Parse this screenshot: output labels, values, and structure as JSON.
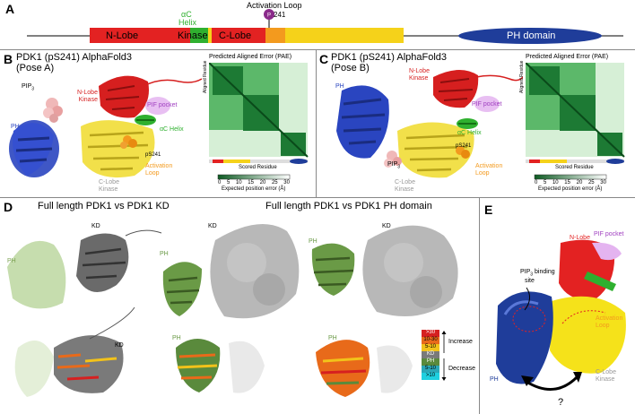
{
  "panel_a": {
    "label": "A",
    "nlobe": "N-Lobe",
    "kinase": "Kinase",
    "clobe": "C-Lobe",
    "ac_helix_line1": "αC",
    "ac_helix_line2": "Helix",
    "activation_loop": "Activation Loop",
    "residue": "241",
    "ph_domain": "PH domain"
  },
  "panel_b": {
    "label": "B",
    "title_line1": "PDK1 (pS241) AlphaFold3",
    "title_line2": "(Pose A)",
    "pip3": "PIP",
    "pip3_sub": "3",
    "ph": "PH",
    "nlobe_kinase": "N-Lobe\nKinase",
    "pif_pocket": "PIF pocket",
    "ac_helix": "αC Helix",
    "ps241": "pS241",
    "activation_loop": "Activation\nLoop",
    "clobe_kinase": "C-Lobe\nKinase",
    "pae_title": "Predicted Aligned Error (PAE)",
    "pae_ylabel": "Aligned Residue",
    "pae_xlabel": "Scored Residue",
    "pae_scale_label": "Expected position error (Å)",
    "pae_ticks": [
      "0",
      "5",
      "10",
      "15",
      "20",
      "25",
      "30"
    ]
  },
  "panel_c": {
    "label": "C",
    "title_line1": "PDK1 (pS241) AlphaFold3",
    "title_line2": "(Pose B)",
    "ph": "PH",
    "nlobe_kinase": "N-Lobe\nKinase",
    "pif_pocket": "PIF pocket",
    "ac_helix": "αC Helix",
    "ps241": "pS241",
    "pip3": "PIP",
    "pip3_sub": "3",
    "activation_loop": "Activation\nLoop",
    "clobe_kinase": "C-Lobe\nKinase",
    "pae_title": "Predicted Aligned Error (PAE)",
    "pae_ylabel": "Aligned Residue",
    "pae_xlabel": "Scored Residue",
    "pae_scale_label": "Expected position error (Å)",
    "pae_ticks": [
      "0",
      "5",
      "10",
      "15",
      "20",
      "25",
      "30"
    ]
  },
  "panel_d": {
    "label": "D",
    "title_left": "Full length PDK1 vs PDK1 KD",
    "title_right": "Full length PDK1 vs PDK1 PH domain",
    "kd": "KD",
    "ph": "PH",
    "legend_items": [
      ">30",
      "10-30",
      "5-10",
      "KD",
      "PH",
      "5-10",
      ">10"
    ],
    "legend_colors": [
      "#d62020",
      "#e86a1a",
      "#f2c21a",
      "#7a7a7a",
      "#5a8a3c",
      "#2aa8b8",
      "#1fd0e0"
    ],
    "increase": "Increase",
    "decrease": "Decrease"
  },
  "panel_e": {
    "label": "E",
    "nlobe": "N-Lobe",
    "pif_pocket": "PIF pocket",
    "pip3_binding_line1": "PIP",
    "pip3_sub": "3",
    "pip3_binding_line1b": " binding",
    "pip3_binding_line2": "site",
    "activation_loop": "Activation\nLoop",
    "clobe_kinase": "C-Lobe\nKinase",
    "ph": "PH",
    "question": "?"
  },
  "colors": {
    "nlobe": "#e32222",
    "clobe": "#f5d21a",
    "ac_helix": "#2fb02f",
    "activation": "#f39a1e",
    "ph": "#1f3d9a",
    "pif": "#d8a4e8",
    "pae_dark": "#1d7a34"
  }
}
